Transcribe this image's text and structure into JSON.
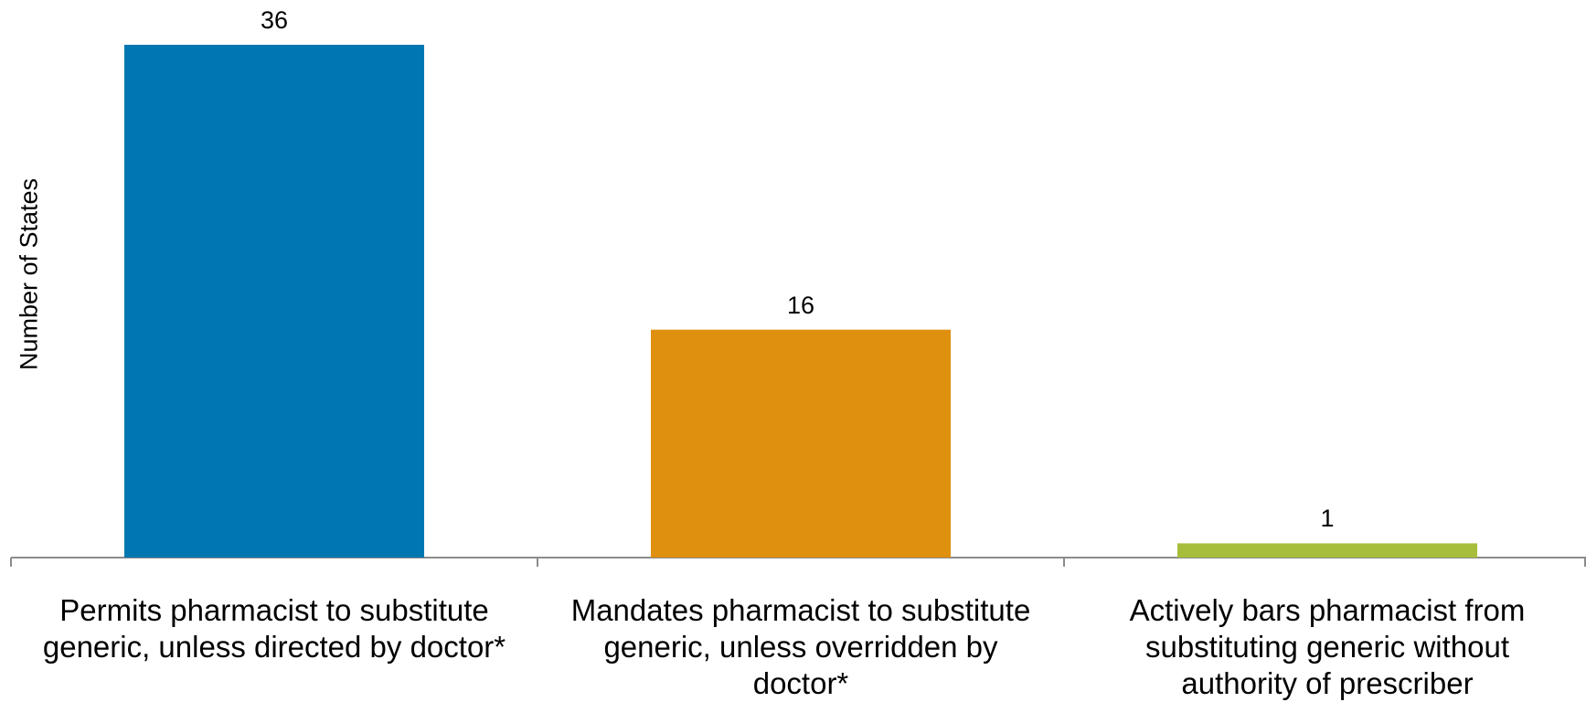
{
  "chart_data": {
    "type": "bar",
    "ylabel": "Number of States",
    "xlabel": "",
    "categories": [
      "Permits pharmacist to substitute generic, unless directed by doctor*",
      "Mandates pharmacist to substitute generic, unless overridden by doctor*",
      "Actively bars pharmacist from substituting generic without authority of prescriber"
    ],
    "category_lines": [
      [
        "Permits pharmacist to substitute",
        "generic, unless directed by doctor*"
      ],
      [
        "Mandates pharmacist to substitute",
        "generic, unless overridden by",
        "doctor*"
      ],
      [
        "Actively bars pharmacist from",
        "substituting generic without",
        "authority of prescriber"
      ]
    ],
    "values": [
      36,
      16,
      1
    ],
    "data_labels": [
      "36",
      "16",
      "1"
    ],
    "colors": [
      "#0077B0",
      "#DE900E",
      "#A6BE3B"
    ],
    "ylim": [
      0,
      36
    ],
    "grid": false,
    "legend": "none"
  }
}
